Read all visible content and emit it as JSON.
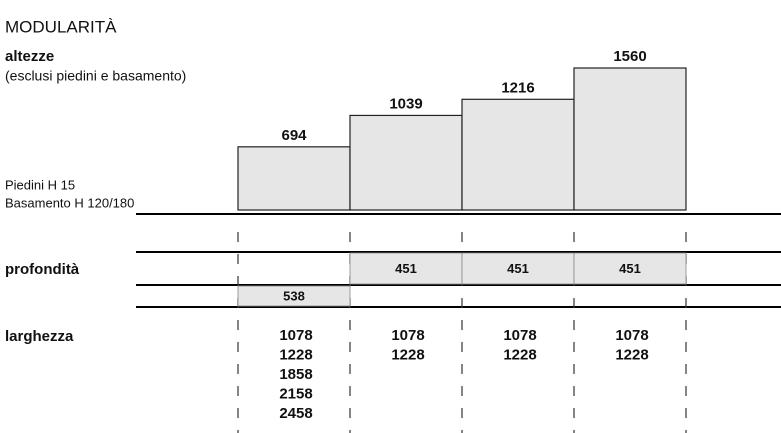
{
  "title": "MODULARITÀ",
  "heights": {
    "label": "altezze",
    "note": "(esclusi piedini e basamento)",
    "base_notes": [
      "Piedini H 15",
      "Basamento H 120/180"
    ],
    "values": [
      694,
      1039,
      1216,
      1560
    ]
  },
  "depth": {
    "label": "profondità",
    "values": [
      538,
      451,
      451,
      451
    ]
  },
  "width": {
    "label": "larghezza",
    "columns": [
      [
        1078,
        1228,
        1858,
        2158,
        2458
      ],
      [
        1078,
        1228
      ],
      [
        1078,
        1228
      ],
      [
        1078,
        1228
      ]
    ]
  }
}
